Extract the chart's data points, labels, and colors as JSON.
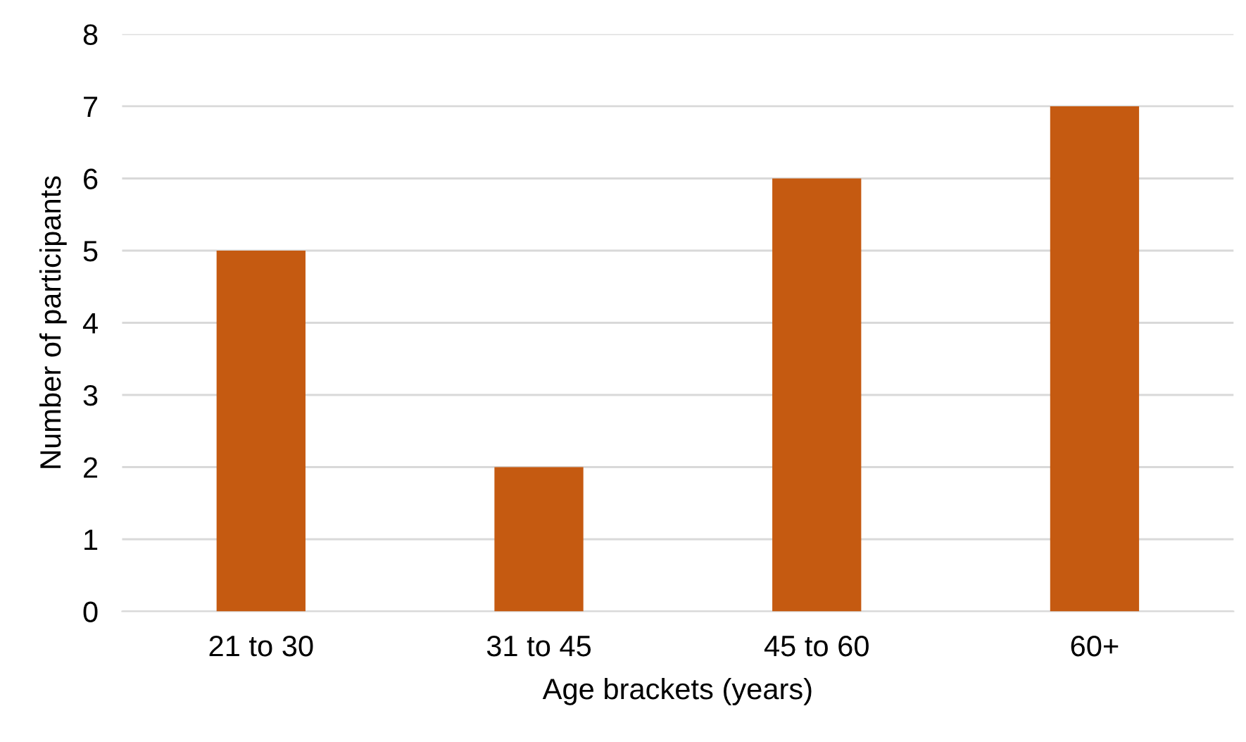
{
  "chart_data": {
    "type": "bar",
    "xlabel": "Age brackets (years)",
    "ylabel": "Number of participants",
    "categories": [
      "21 to 30",
      "31 to 45",
      "45 to 60",
      "60+"
    ],
    "values": [
      5,
      2,
      6,
      7
    ],
    "color": "#c55a11",
    "ylim": [
      0,
      8
    ],
    "yticks": [
      0,
      1,
      2,
      3,
      4,
      5,
      6,
      7,
      8
    ],
    "grid": "y",
    "legend": false
  }
}
